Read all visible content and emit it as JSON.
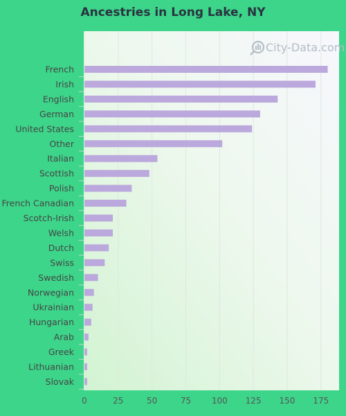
{
  "chart_data": {
    "type": "bar",
    "orientation": "horizontal",
    "title": "Ancestries in Long Lake, NY",
    "categories": [
      "French",
      "Irish",
      "English",
      "German",
      "United States",
      "Other",
      "Italian",
      "Scottish",
      "Polish",
      "French Canadian",
      "Scotch-Irish",
      "Welsh",
      "Dutch",
      "Swiss",
      "Swedish",
      "Norwegian",
      "Ukrainian",
      "Hungarian",
      "Arab",
      "Greek",
      "Lithuanian",
      "Slovak"
    ],
    "values": [
      180,
      171,
      143,
      130,
      124,
      102,
      54,
      48,
      35,
      31,
      21,
      21,
      18,
      15,
      10,
      7,
      6,
      5,
      3,
      2,
      2,
      2
    ],
    "xlim": [
      0,
      190
    ],
    "xticks": [
      "0",
      "25",
      "50",
      "75",
      "100",
      "125",
      "150",
      "175"
    ],
    "grid": true,
    "bar_color": "#bba8dc"
  },
  "watermark": {
    "text": "City-Data.com",
    "icon": "city-data-logo-icon"
  },
  "colors": {
    "background": "#3dd58a",
    "title": "#2a3340"
  }
}
